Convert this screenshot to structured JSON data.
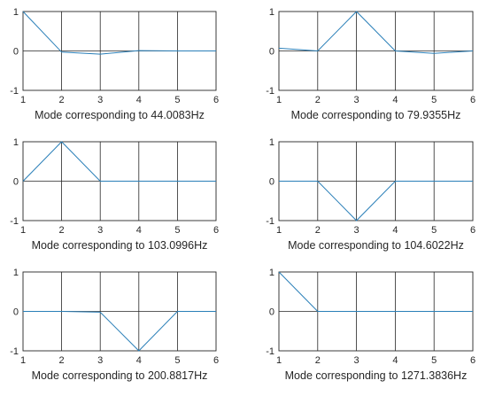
{
  "chart_data": [
    {
      "type": "line",
      "xlabel": "Mode corresponding to 44.0083Hz",
      "x": [
        1,
        2,
        3,
        4,
        5,
        6
      ],
      "xticks": [
        "1",
        "2",
        "3",
        "4",
        "5",
        "6"
      ],
      "yticks": [
        "1",
        "0",
        "-1"
      ],
      "xlim": [
        1,
        6
      ],
      "ylim": [
        -1,
        1
      ],
      "grid": true,
      "series": [
        {
          "values": [
            1,
            -0.03,
            -0.08,
            0.01,
            0.0,
            0.0
          ],
          "color": "#2a7fb8"
        }
      ]
    },
    {
      "type": "line",
      "xlabel": "Mode corresponding to 79.9355Hz",
      "x": [
        1,
        2,
        3,
        4,
        5,
        6
      ],
      "xticks": [
        "1",
        "2",
        "3",
        "4",
        "5",
        "6"
      ],
      "yticks": [
        "1",
        "0",
        "-1"
      ],
      "xlim": [
        1,
        6
      ],
      "ylim": [
        -1,
        1
      ],
      "grid": true,
      "series": [
        {
          "values": [
            0.07,
            0.0,
            1.0,
            0.0,
            -0.06,
            0.0
          ],
          "color": "#2a7fb8"
        }
      ]
    },
    {
      "type": "line",
      "xlabel": "Mode corresponding to 103.0996Hz",
      "x": [
        1,
        2,
        3,
        4,
        5,
        6
      ],
      "xticks": [
        "1",
        "2",
        "3",
        "4",
        "5",
        "6"
      ],
      "yticks": [
        "1",
        "0",
        "-1"
      ],
      "xlim": [
        1,
        6
      ],
      "ylim": [
        -1,
        1
      ],
      "grid": true,
      "series": [
        {
          "values": [
            0.0,
            1.0,
            0.0,
            0.0,
            0.0,
            0.0
          ],
          "color": "#2a7fb8"
        }
      ]
    },
    {
      "type": "line",
      "xlabel": "Mode corresponding to 104.6022Hz",
      "x": [
        1,
        2,
        3,
        4,
        5,
        6
      ],
      "xticks": [
        "1",
        "2",
        "3",
        "4",
        "5",
        "6"
      ],
      "yticks": [
        "1",
        "0",
        "-1"
      ],
      "xlim": [
        1,
        6
      ],
      "ylim": [
        -1,
        1
      ],
      "grid": true,
      "series": [
        {
          "values": [
            0.0,
            0.0,
            -1.0,
            0.0,
            0.0,
            0.0
          ],
          "color": "#2a7fb8"
        }
      ]
    },
    {
      "type": "line",
      "xlabel": "Mode corresponding to 200.8817Hz",
      "x": [
        1,
        2,
        3,
        4,
        5,
        6
      ],
      "xticks": [
        "1",
        "2",
        "3",
        "4",
        "5",
        "6"
      ],
      "yticks": [
        "1",
        "0",
        "-1"
      ],
      "xlim": [
        1,
        6
      ],
      "ylim": [
        -1,
        1
      ],
      "grid": true,
      "series": [
        {
          "values": [
            0.0,
            0.0,
            -0.02,
            -1.0,
            0.0,
            0.0
          ],
          "color": "#2a7fb8"
        }
      ]
    },
    {
      "type": "line",
      "xlabel": "Mode corresponding to 1271.3836Hz",
      "x": [
        1,
        2,
        3,
        4,
        5,
        6
      ],
      "xticks": [
        "1",
        "2",
        "3",
        "4",
        "5",
        "6"
      ],
      "yticks": [
        "1",
        "0",
        "-1"
      ],
      "xlim": [
        1,
        6
      ],
      "ylim": [
        -1,
        1
      ],
      "grid": true,
      "series": [
        {
          "values": [
            1.0,
            0.0,
            0.0,
            0.0,
            0.0,
            0.0
          ],
          "color": "#2a7fb8"
        }
      ]
    }
  ]
}
